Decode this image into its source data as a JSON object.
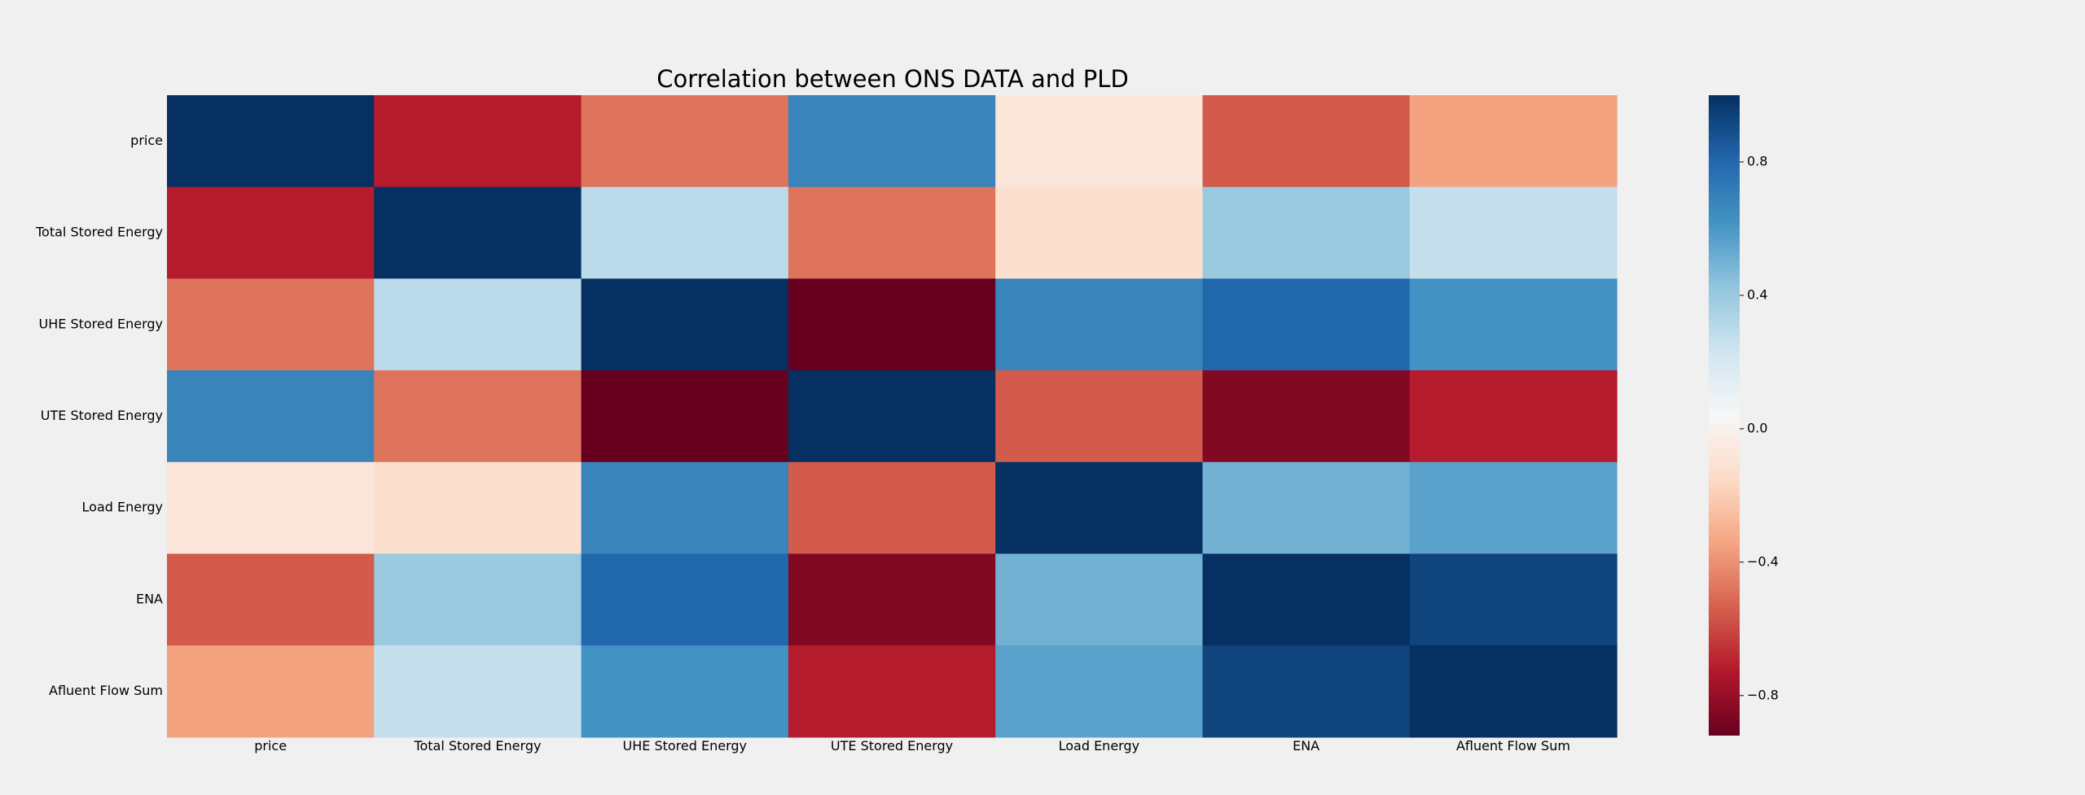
{
  "chart_data": {
    "type": "heatmap",
    "title": "Correlation between ONS DATA and PLD",
    "xlabel": "",
    "ylabel": "",
    "rows": [
      "price",
      "Total Stored Energy",
      "UHE Stored Energy",
      "UTE Stored Energy",
      "Load Energy",
      "ENA",
      "Afluent Flow Sum"
    ],
    "cols": [
      "price",
      "Total Stored Energy",
      "UHE Stored Energy",
      "UTE Stored Energy",
      "Load Energy",
      "ENA",
      "Afluent Flow Sum"
    ],
    "values": [
      [
        1.0,
        -0.72,
        -0.48,
        0.68,
        -0.08,
        -0.55,
        -0.35
      ],
      [
        -0.72,
        1.0,
        0.3,
        -0.48,
        -0.12,
        0.4,
        0.27
      ],
      [
        -0.48,
        0.3,
        1.0,
        -0.92,
        0.68,
        0.8,
        0.62
      ],
      [
        0.68,
        -0.48,
        -0.92,
        1.0,
        -0.55,
        -0.85,
        -0.72
      ],
      [
        -0.08,
        -0.12,
        0.68,
        -0.55,
        1.0,
        0.5,
        0.56
      ],
      [
        -0.55,
        0.4,
        0.8,
        -0.85,
        0.5,
        1.0,
        0.93
      ],
      [
        -0.35,
        0.27,
        0.62,
        -0.72,
        0.56,
        0.93,
        1.0
      ]
    ],
    "colormap": "RdBu",
    "vmin": -0.92,
    "vmax": 1.0,
    "colorbar_ticks": [
      "0.8",
      "0.4",
      "0.0",
      "−0.4",
      "−0.8"
    ],
    "colorbar_tick_values": [
      0.8,
      0.4,
      0.0,
      -0.4,
      -0.8
    ],
    "grid": false,
    "legend": "colorbar-right"
  }
}
